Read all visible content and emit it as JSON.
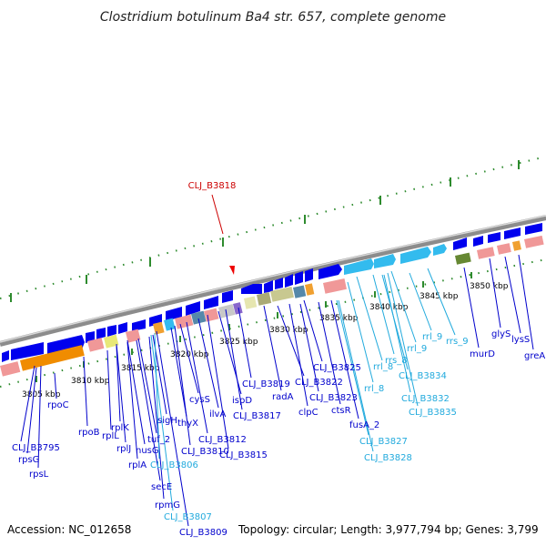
{
  "title": "Clostridium botulinum Ba4 str. 657, complete genome",
  "highlight": {
    "label": "CLJ_B3818",
    "color": "#cc0000"
  },
  "footer": {
    "accession": "Accession: NC_012658",
    "summary": "Topology: circular; Length: 3,977,794 bp; Genes: 3,799"
  },
  "colors": {
    "backbone": "#999999",
    "tick": "#2e8b2e",
    "gene_blue": "#0000ee",
    "gene_cyan": "#33bbee",
    "label_blue": "#0000cc",
    "label_cyan": "#22aadd"
  },
  "kbp_ticks": [
    "3805 kbp",
    "3810 kbp",
    "3815 kbp",
    "3820 kbp",
    "3825 kbp",
    "3830 kbp",
    "3835 kbp",
    "3840 kbp",
    "3845 kbp",
    "3850 kbp"
  ],
  "gene_labels": [
    {
      "text": "rpoC",
      "cls": "blue"
    },
    {
      "text": "CLJ_B3795",
      "cls": "blue"
    },
    {
      "text": "rpsG",
      "cls": "blue"
    },
    {
      "text": "rpsL",
      "cls": "blue"
    },
    {
      "text": "rpoB",
      "cls": "blue"
    },
    {
      "text": "rplL",
      "cls": "blue"
    },
    {
      "text": "rplK",
      "cls": "blue"
    },
    {
      "text": "rplJ",
      "cls": "blue"
    },
    {
      "text": "nusG",
      "cls": "blue"
    },
    {
      "text": "rplA",
      "cls": "blue"
    },
    {
      "text": "tuf_2",
      "cls": "blue"
    },
    {
      "text": "secE",
      "cls": "blue"
    },
    {
      "text": "sigH",
      "cls": "blue"
    },
    {
      "text": "rpmG",
      "cls": "blue"
    },
    {
      "text": "CLJ_B3806",
      "cls": "cyan"
    },
    {
      "text": "CLJ_B3807",
      "cls": "cyan"
    },
    {
      "text": "CLJ_B3809",
      "cls": "blue"
    },
    {
      "text": "thyX",
      "cls": "blue"
    },
    {
      "text": "CLJ_B3810",
      "cls": "blue"
    },
    {
      "text": "cysS",
      "cls": "blue"
    },
    {
      "text": "CLJ_B3812",
      "cls": "blue"
    },
    {
      "text": "ilvA",
      "cls": "blue"
    },
    {
      "text": "CLJ_B3815",
      "cls": "blue"
    },
    {
      "text": "ispD",
      "cls": "blue"
    },
    {
      "text": "CLJ_B3817",
      "cls": "blue"
    },
    {
      "text": "CLJ_B3819",
      "cls": "blue"
    },
    {
      "text": "radA",
      "cls": "blue"
    },
    {
      "text": "clpC",
      "cls": "blue"
    },
    {
      "text": "CLJ_B3822",
      "cls": "blue"
    },
    {
      "text": "CLJ_B3823",
      "cls": "blue"
    },
    {
      "text": "CLJ_B3825",
      "cls": "blue"
    },
    {
      "text": "ctsR",
      "cls": "blue"
    },
    {
      "text": "rrl_8",
      "cls": "cyan"
    },
    {
      "text": "fusA_2",
      "cls": "blue"
    },
    {
      "text": "CLJ_B3827",
      "cls": "cyan"
    },
    {
      "text": "CLJ_B3828",
      "cls": "cyan"
    },
    {
      "text": "rrl_8",
      "cls": "cyan"
    },
    {
      "text": "rrs_8",
      "cls": "cyan"
    },
    {
      "text": "rrl_9",
      "cls": "cyan"
    },
    {
      "text": "CLJ_B3834",
      "cls": "cyan"
    },
    {
      "text": "CLJ_B3832",
      "cls": "cyan"
    },
    {
      "text": "CLJ_B3835",
      "cls": "cyan"
    },
    {
      "text": "rrl_9",
      "cls": "cyan"
    },
    {
      "text": "rrs_9",
      "cls": "cyan"
    },
    {
      "text": "murD",
      "cls": "blue"
    },
    {
      "text": "glyS",
      "cls": "blue"
    },
    {
      "text": "lysS",
      "cls": "blue"
    },
    {
      "text": "greA",
      "cls": "blue"
    }
  ]
}
